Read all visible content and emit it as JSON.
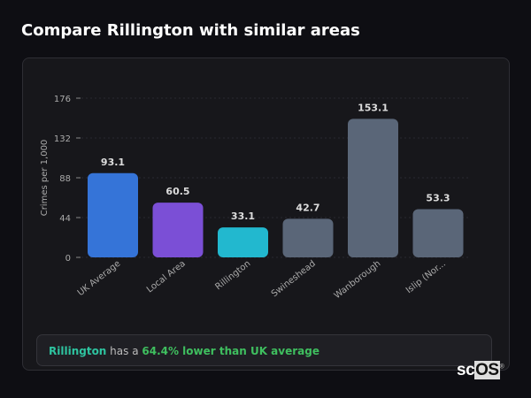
{
  "title": "Compare Rillington with similar areas",
  "chart_data": {
    "type": "bar",
    "title": "",
    "xlabel": "",
    "ylabel": "Crimes per 1,000",
    "ylim": [
      0,
      176
    ],
    "yticks": [
      0,
      44,
      88,
      132,
      176
    ],
    "grid": true,
    "categories": [
      "UK Average",
      "Local Area",
      "Rillington",
      "Swineshead",
      "Wanborough",
      "Islip (Nor..."
    ],
    "values": [
      93.1,
      60.5,
      33.1,
      42.7,
      153.1,
      53.3
    ],
    "data_labels": [
      "93.1",
      "60.5",
      "33.1",
      "42.7",
      "153.1",
      "53.3"
    ],
    "colors": [
      "#3574d8",
      "#7b4fd6",
      "#22b8cf",
      "#5a6678",
      "#5a6678",
      "#5a6678"
    ]
  },
  "summary": {
    "area": "Rillington",
    "middle": " has a ",
    "comparison": "64.4% lower than UK average"
  },
  "logo": {
    "text_a": "sc",
    "text_b": "OS",
    "mark": "®"
  }
}
